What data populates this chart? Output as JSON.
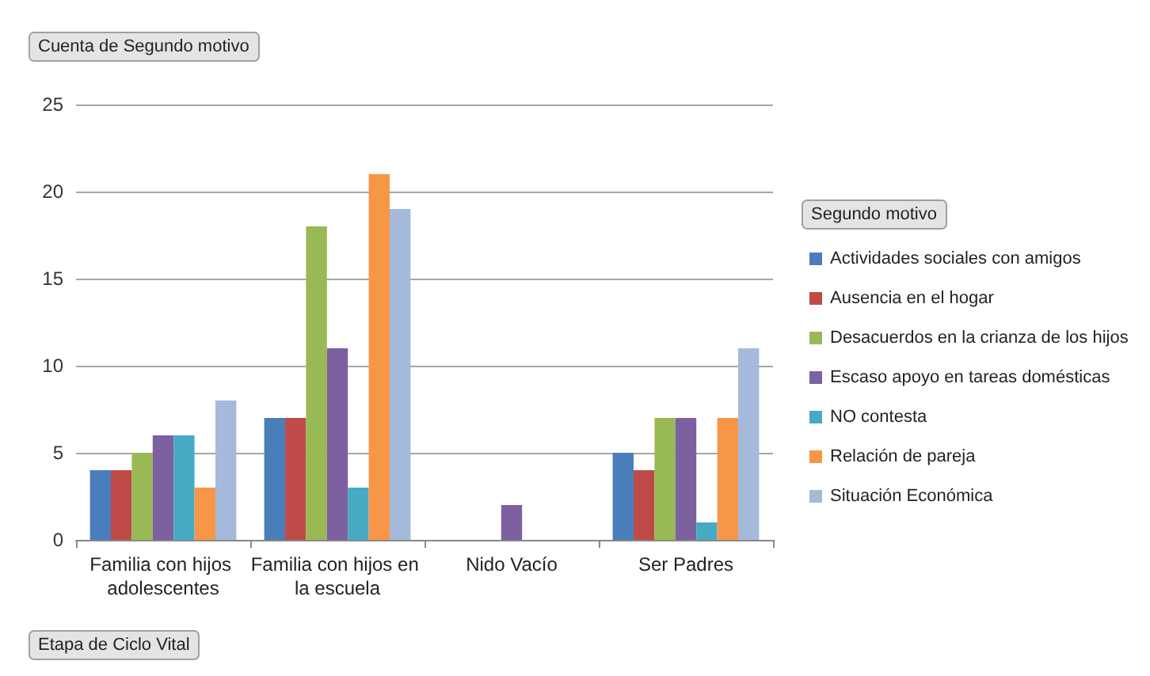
{
  "chart_data": {
    "type": "bar",
    "title": "Cuenta de Segundo motivo",
    "xlabel": "Etapa de Ciclo Vital",
    "legend_title": "Segundo motivo",
    "categories": [
      "Familia con hijos adolescentes",
      "Familia con hijos en la escuela",
      "Nido Vacío",
      "Ser Padres"
    ],
    "series": [
      {
        "name": "Actividades sociales con amigos",
        "color": "#4a7ebb",
        "values": [
          4,
          7,
          null,
          5
        ]
      },
      {
        "name": "Ausencia en el hogar",
        "color": "#be4b48",
        "values": [
          4,
          7,
          null,
          4
        ]
      },
      {
        "name": "Desacuerdos en la crianza de los hijos",
        "color": "#98b954",
        "values": [
          5,
          18,
          null,
          7
        ]
      },
      {
        "name": "Escaso apoyo en tareas domésticas",
        "color": "#7d60a0",
        "values": [
          6,
          11,
          2,
          7
        ]
      },
      {
        "name": "NO contesta",
        "color": "#46aac5",
        "values": [
          6,
          3,
          null,
          1
        ]
      },
      {
        "name": "Relación de pareja",
        "color": "#f79646",
        "values": [
          3,
          21,
          null,
          7
        ]
      },
      {
        "name": "Situación Económica",
        "color": "#a5b9da",
        "values": [
          8,
          19,
          null,
          11
        ]
      }
    ],
    "ylim": [
      0,
      25
    ],
    "yticks": [
      0,
      5,
      10,
      15,
      20,
      25
    ],
    "grid": "y",
    "legend": "right"
  }
}
